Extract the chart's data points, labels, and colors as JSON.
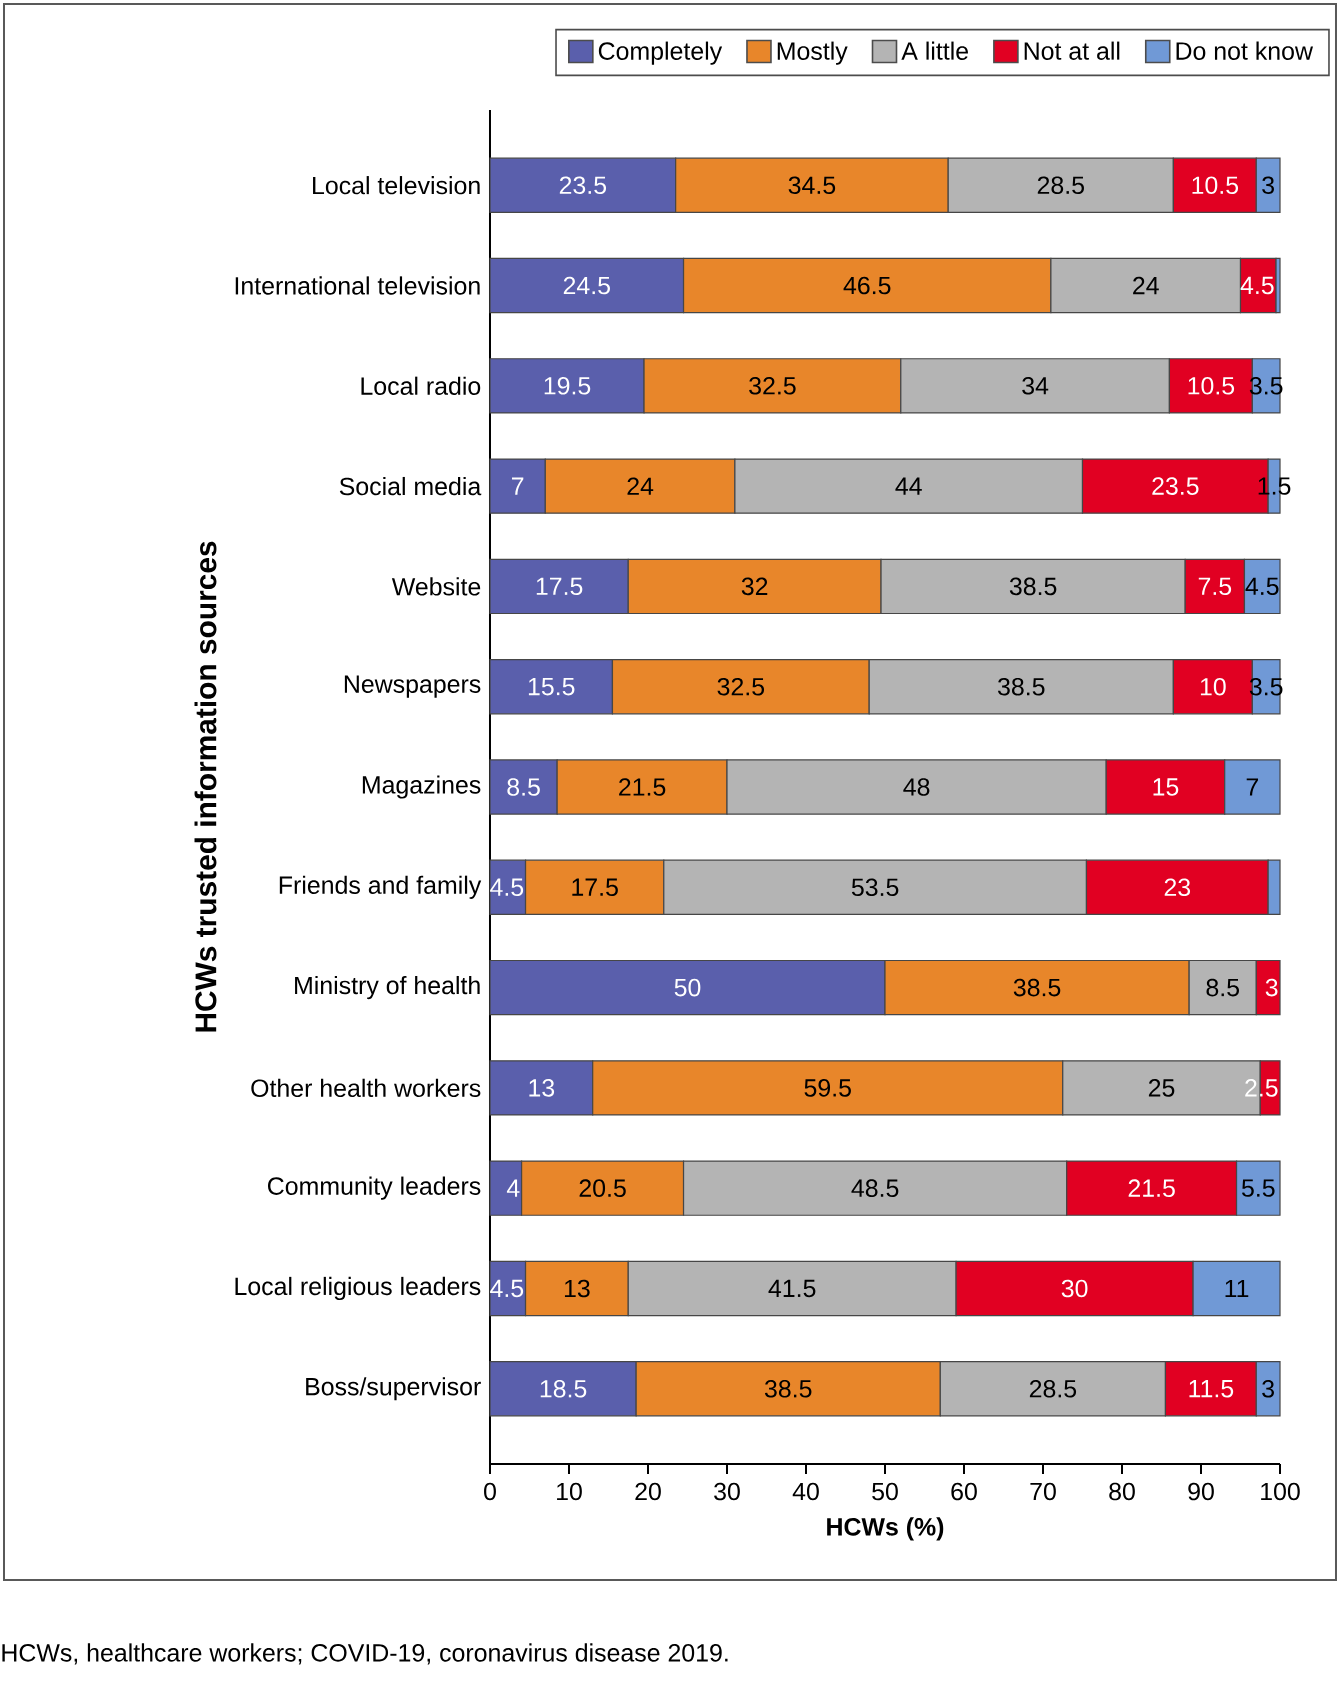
{
  "chart_data": {
    "type": "bar",
    "orientation": "horizontal",
    "stacked": true,
    "xlabel": "HCWs (%)",
    "ylabel": "HCWs trusted information sources",
    "categories": [
      "Local television",
      "International television",
      "Local radio",
      "Social media",
      "Website",
      "Newspapers",
      "Magazines",
      "Friends and family",
      "Ministry of health",
      "Other health workers",
      "Community leaders",
      "Local religious leaders",
      "Boss/supervisor"
    ],
    "series": [
      {
        "name": "Completely",
        "color": "#5a5fac",
        "values": [
          23.5,
          24.5,
          19.5,
          7,
          17.5,
          15.5,
          8.5,
          4.5,
          50,
          13,
          4,
          4.5,
          18.5
        ],
        "value_labels": [
          "23.5",
          "24.5",
          "19.5",
          "7",
          "17.5",
          "15.5",
          "8.5",
          "4.5",
          "50",
          "13",
          "4",
          "4.5",
          "18.5"
        ]
      },
      {
        "name": "Mostly",
        "color": "#e8862a",
        "values": [
          34.5,
          46.5,
          32.5,
          24,
          32,
          32.5,
          21.5,
          17.5,
          38.5,
          59.5,
          20.5,
          13,
          38.5
        ],
        "value_labels": [
          "34.5",
          "46.5",
          "32.5",
          "24",
          "32",
          "32.5",
          "21.5",
          "17.5",
          "38.5",
          "59.5",
          "20.5",
          "13",
          "38.5"
        ]
      },
      {
        "name": "A little",
        "color": "#b4b4b4",
        "values": [
          28.5,
          24,
          34,
          44,
          38.5,
          38.5,
          48,
          53.5,
          8.5,
          25,
          48.5,
          41.5,
          28.5
        ],
        "value_labels": [
          "28.5",
          "24",
          "34",
          "44",
          "38.5",
          "38.5",
          "48",
          "53.5",
          "8.5",
          "25",
          "48.5",
          "41.5",
          "28.5"
        ]
      },
      {
        "name": "Not at all",
        "color": "#e10022",
        "values": [
          10.5,
          4.5,
          10.5,
          23.5,
          7.5,
          10,
          15,
          23,
          3,
          2.5,
          21.5,
          30,
          11.5
        ],
        "value_labels": [
          "10.5",
          "4.5",
          "10.5",
          "23.5",
          "7.5",
          "10",
          "15",
          "23",
          "3",
          "2.5",
          "21.5",
          "30",
          "11.5"
        ]
      },
      {
        "name": "Do not know",
        "color": "#7099d6",
        "values": [
          3,
          0.5,
          3.5,
          1.5,
          4.5,
          3.5,
          7,
          1.5,
          null,
          null,
          5.5,
          11,
          3
        ],
        "value_labels": [
          "3",
          null,
          "3.5",
          "1.5",
          "4.5",
          "3.5",
          "7",
          null,
          null,
          null,
          "5.5",
          "11",
          "3"
        ]
      }
    ],
    "xlim": [
      0,
      100
    ],
    "xticks": [
      0,
      10,
      20,
      30,
      40,
      50,
      60,
      70,
      80,
      90,
      100
    ],
    "grid": false,
    "legend": "top",
    "annotations": [
      "HCWs, healthcare workers; COVID-19, coronavirus disease 2019."
    ]
  }
}
